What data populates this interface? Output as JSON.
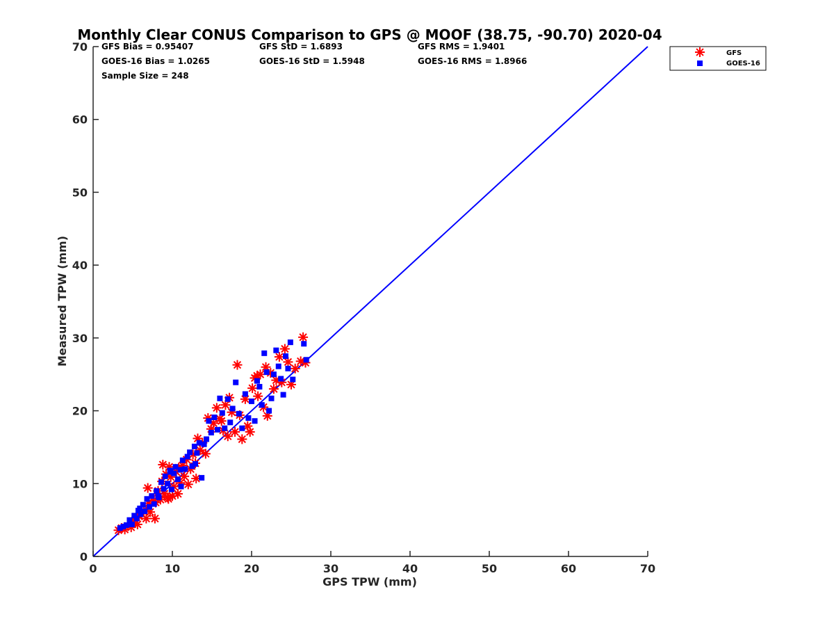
{
  "chart_data": {
    "type": "scatter",
    "title": "Monthly Clear CONUS Comparison to GPS @ MOOF (38.75, -90.70) 2020-04",
    "xlabel": "GPS TPW (mm)",
    "ylabel": "Measured TPW (mm)",
    "xlim": [
      0,
      70
    ],
    "ylim": [
      0,
      70
    ],
    "xticks": [
      "0",
      "10",
      "20",
      "30",
      "40",
      "50",
      "60",
      "70"
    ],
    "yticks": [
      "0",
      "10",
      "20",
      "30",
      "40",
      "50",
      "60",
      "70"
    ],
    "grid": false,
    "legend_position": "top-right outside",
    "reference_line": {
      "x": [
        0,
        70
      ],
      "y": [
        0,
        70
      ],
      "color": "#0000ff"
    },
    "stats": {
      "gfs_bias": "GFS Bias = 0.95407",
      "gfs_std": "GFS StD = 1.6893",
      "gfs_rms": "GFS RMS = 1.9401",
      "goes_bias": "GOES-16 Bias = 1.0265",
      "goes_std": "GOES-16 StD = 1.5948",
      "goes_rms": "GOES-16 RMS = 1.8966",
      "sample_size": "Sample Size = 248"
    },
    "series": [
      {
        "name": "GFS",
        "marker": "asterisk",
        "color": "#ff0000",
        "points": [
          [
            3.2,
            3.6
          ],
          [
            3.6,
            3.9
          ],
          [
            4.0,
            3.7
          ],
          [
            4.4,
            4.2
          ],
          [
            4.8,
            4.0
          ],
          [
            5.0,
            4.6
          ],
          [
            5.3,
            5.0
          ],
          [
            5.6,
            4.4
          ],
          [
            5.8,
            5.5
          ],
          [
            6.1,
            5.9
          ],
          [
            6.4,
            6.3
          ],
          [
            6.7,
            5.2
          ],
          [
            7.0,
            7.3
          ],
          [
            7.2,
            6.1
          ],
          [
            7.5,
            8.0
          ],
          [
            7.8,
            5.2
          ],
          [
            7.9,
            7.4
          ],
          [
            8.2,
            9.0
          ],
          [
            8.5,
            7.8
          ],
          [
            8.7,
            10.3
          ],
          [
            9.0,
            8.6
          ],
          [
            9.2,
            11.3
          ],
          [
            9.4,
            8.1
          ],
          [
            9.6,
            12.3
          ],
          [
            9.8,
            10.9
          ],
          [
            10.0,
            8.3
          ],
          [
            10.2,
            9.6
          ],
          [
            10.5,
            11.6
          ],
          [
            10.7,
            8.6
          ],
          [
            11.0,
            10.1
          ],
          [
            11.3,
            12.5
          ],
          [
            11.5,
            11.0
          ],
          [
            11.8,
            13.3
          ],
          [
            12.0,
            9.9
          ],
          [
            12.3,
            12.0
          ],
          [
            12.6,
            14.0
          ],
          [
            12.9,
            12.8
          ],
          [
            13.2,
            16.2
          ],
          [
            13.5,
            14.6
          ],
          [
            13.8,
            15.6
          ],
          [
            14.2,
            14.1
          ],
          [
            14.5,
            19.0
          ],
          [
            14.9,
            17.5
          ],
          [
            15.2,
            18.3
          ],
          [
            15.6,
            20.4
          ],
          [
            16.0,
            18.9
          ],
          [
            16.4,
            17.3
          ],
          [
            16.7,
            20.8
          ],
          [
            17.0,
            16.5
          ],
          [
            17.2,
            21.8
          ],
          [
            17.5,
            19.8
          ],
          [
            17.9,
            17.1
          ],
          [
            18.2,
            26.3
          ],
          [
            18.5,
            19.4
          ],
          [
            18.8,
            16.1
          ],
          [
            19.2,
            21.6
          ],
          [
            19.5,
            17.9
          ],
          [
            19.8,
            17.1
          ],
          [
            20.1,
            23.1
          ],
          [
            20.4,
            24.5
          ],
          [
            20.8,
            22.0
          ],
          [
            21.1,
            25.0
          ],
          [
            21.5,
            20.5
          ],
          [
            21.8,
            26.0
          ],
          [
            22.0,
            19.3
          ],
          [
            22.4,
            25.2
          ],
          [
            22.8,
            23.0
          ],
          [
            23.1,
            24.2
          ],
          [
            23.5,
            27.4
          ],
          [
            23.8,
            23.9
          ],
          [
            24.2,
            28.5
          ],
          [
            24.6,
            26.7
          ],
          [
            25.0,
            23.6
          ],
          [
            25.5,
            25.8
          ],
          [
            26.2,
            26.8
          ],
          [
            26.5,
            30.1
          ],
          [
            26.8,
            26.6
          ],
          [
            9.5,
            7.9
          ],
          [
            10.8,
            12.2
          ],
          [
            6.9,
            9.4
          ],
          [
            8.8,
            12.6
          ],
          [
            13.0,
            10.7
          ],
          [
            16.2,
            18.6
          ],
          [
            20.7,
            24.8
          ]
        ]
      },
      {
        "name": "GOES-16",
        "marker": "square",
        "color": "#0000ff",
        "points": [
          [
            3.4,
            3.9
          ],
          [
            3.8,
            4.1
          ],
          [
            4.2,
            4.3
          ],
          [
            4.6,
            5.0
          ],
          [
            4.9,
            4.4
          ],
          [
            5.2,
            5.6
          ],
          [
            5.5,
            5.2
          ],
          [
            5.7,
            6.3
          ],
          [
            6.0,
            5.8
          ],
          [
            6.3,
            7.1
          ],
          [
            6.5,
            6.2
          ],
          [
            6.8,
            7.9
          ],
          [
            7.1,
            6.8
          ],
          [
            7.4,
            8.3
          ],
          [
            7.7,
            7.2
          ],
          [
            8.0,
            9.0
          ],
          [
            8.3,
            8.1
          ],
          [
            8.6,
            10.2
          ],
          [
            8.9,
            9.3
          ],
          [
            9.1,
            11.0
          ],
          [
            9.4,
            10.0
          ],
          [
            9.7,
            11.8
          ],
          [
            9.9,
            9.2
          ],
          [
            10.2,
            11.4
          ],
          [
            10.4,
            12.3
          ],
          [
            10.7,
            10.6
          ],
          [
            11.0,
            11.9
          ],
          [
            11.3,
            13.2
          ],
          [
            11.6,
            12.0
          ],
          [
            11.9,
            13.7
          ],
          [
            12.2,
            14.3
          ],
          [
            12.5,
            12.4
          ],
          [
            12.8,
            15.1
          ],
          [
            13.1,
            14.2
          ],
          [
            13.4,
            15.6
          ],
          [
            13.7,
            10.8
          ],
          [
            14.0,
            15.4
          ],
          [
            14.3,
            16.1
          ],
          [
            14.6,
            18.6
          ],
          [
            14.9,
            17.0
          ],
          [
            15.3,
            19.1
          ],
          [
            15.7,
            17.4
          ],
          [
            16.0,
            21.7
          ],
          [
            16.3,
            19.7
          ],
          [
            16.6,
            17.6
          ],
          [
            17.0,
            21.6
          ],
          [
            17.3,
            18.4
          ],
          [
            17.6,
            20.3
          ],
          [
            18.0,
            23.9
          ],
          [
            18.4,
            19.6
          ],
          [
            18.8,
            17.6
          ],
          [
            19.2,
            22.3
          ],
          [
            19.6,
            19.0
          ],
          [
            20.0,
            21.3
          ],
          [
            20.4,
            18.6
          ],
          [
            20.7,
            24.1
          ],
          [
            21.0,
            23.3
          ],
          [
            21.3,
            20.8
          ],
          [
            21.6,
            27.9
          ],
          [
            21.9,
            25.3
          ],
          [
            22.2,
            20.0
          ],
          [
            22.5,
            21.7
          ],
          [
            22.8,
            25.0
          ],
          [
            23.1,
            28.3
          ],
          [
            23.4,
            26.1
          ],
          [
            23.7,
            24.4
          ],
          [
            24.0,
            22.2
          ],
          [
            24.3,
            27.5
          ],
          [
            24.6,
            25.8
          ],
          [
            24.9,
            29.4
          ],
          [
            25.2,
            24.3
          ],
          [
            26.6,
            29.2
          ],
          [
            26.9,
            27.0
          ],
          [
            8.2,
            8.3
          ],
          [
            9.8,
            11.6
          ],
          [
            11.1,
            9.6
          ],
          [
            12.9,
            12.7
          ],
          [
            5.9,
            6.6
          ]
        ]
      }
    ]
  }
}
